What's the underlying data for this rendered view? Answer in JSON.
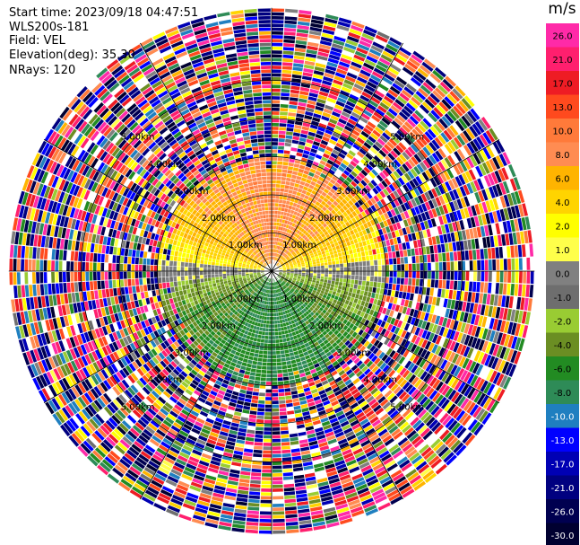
{
  "header": {
    "start_time": "Start time: 2023/09/18 04:47:51",
    "instrument": "WLS200s-181",
    "field": "Field: VEL",
    "elevation": "Elevation(deg): 35.30",
    "nrays": "NRays: 120"
  },
  "colorbar": {
    "unit": "m/s",
    "labels": [
      "26.0",
      "21.0",
      "17.0",
      "13.0",
      "10.0",
      "8.0",
      "6.0",
      "4.0",
      "2.0",
      "1.0",
      "0.0",
      "-1.0",
      "-2.0",
      "-4.0",
      "-6.0",
      "-8.0",
      "-10.0",
      "-13.0",
      "-17.0",
      "-21.0",
      "-26.0",
      "-30.0"
    ],
    "colors": [
      "#ff2aa8",
      "#ff1f6e",
      "#ee1c24",
      "#ff4a1e",
      "#ff7a3a",
      "#ff8c52",
      "#ffb400",
      "#ffd400",
      "#ffff00",
      "#ffff4a",
      "#808080",
      "#6e6e6e",
      "#99cc33",
      "#6b8e23",
      "#228b22",
      "#2e8b57",
      "#1f7fc0",
      "#0000ff",
      "#0000b4",
      "#000080",
      "#000050",
      "#000030"
    ]
  },
  "chart_data": {
    "type": "heatmap",
    "title": "",
    "field": "VEL",
    "unit": "m/s",
    "elevation_deg": 35.3,
    "n_rays": 120,
    "range_rings_km": [
      1.0,
      2.0,
      3.0,
      4.0,
      5.0
    ],
    "range_ring_labels": [
      "1.00km",
      "2.00km",
      "3.00km",
      "4.00km",
      "5.00km"
    ],
    "value_range": [
      -30.0,
      26.0
    ],
    "pattern": {
      "upper_half_near_range": "positive velocities 2 to 10 m/s (yellow-orange)",
      "lower_half_near_range": "negative velocities -2 to -8 m/s (green)",
      "horizontal_axis_band": "near 0 m/s (gray)",
      "beyond_approx_3km": "noisy values spanning full range"
    },
    "grid": true
  }
}
